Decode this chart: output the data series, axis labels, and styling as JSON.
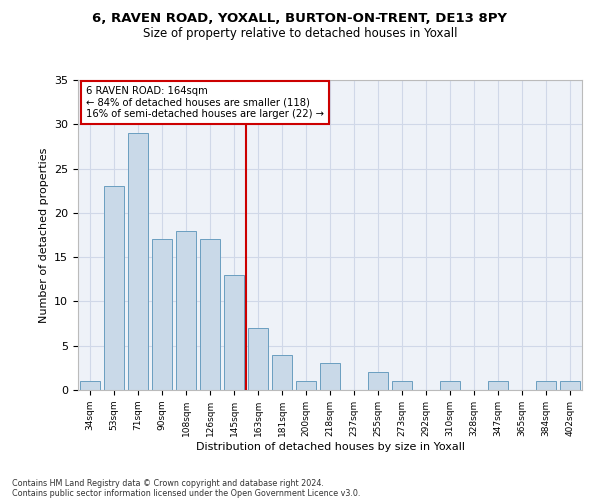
{
  "title1": "6, RAVEN ROAD, YOXALL, BURTON-ON-TRENT, DE13 8PY",
  "title2": "Size of property relative to detached houses in Yoxall",
  "xlabel": "Distribution of detached houses by size in Yoxall",
  "ylabel": "Number of detached properties",
  "categories": [
    "34sqm",
    "53sqm",
    "71sqm",
    "90sqm",
    "108sqm",
    "126sqm",
    "145sqm",
    "163sqm",
    "181sqm",
    "200sqm",
    "218sqm",
    "237sqm",
    "255sqm",
    "273sqm",
    "292sqm",
    "310sqm",
    "328sqm",
    "347sqm",
    "365sqm",
    "384sqm",
    "402sqm"
  ],
  "values": [
    1,
    23,
    29,
    17,
    18,
    17,
    13,
    7,
    4,
    1,
    3,
    0,
    2,
    1,
    0,
    1,
    0,
    1,
    0,
    1,
    1
  ],
  "bar_color": "#c9d9e8",
  "bar_edge_color": "#6a9ec0",
  "grid_color": "#d0d8e8",
  "bg_color": "#eef2f8",
  "vline_color": "#cc0000",
  "annotation_text": "6 RAVEN ROAD: 164sqm\n← 84% of detached houses are smaller (118)\n16% of semi-detached houses are larger (22) →",
  "annotation_box_color": "#ffffff",
  "annotation_box_edge": "#cc0000",
  "footnote1": "Contains HM Land Registry data © Crown copyright and database right 2024.",
  "footnote2": "Contains public sector information licensed under the Open Government Licence v3.0.",
  "ylim": [
    0,
    35
  ],
  "yticks": [
    0,
    5,
    10,
    15,
    20,
    25,
    30,
    35
  ]
}
